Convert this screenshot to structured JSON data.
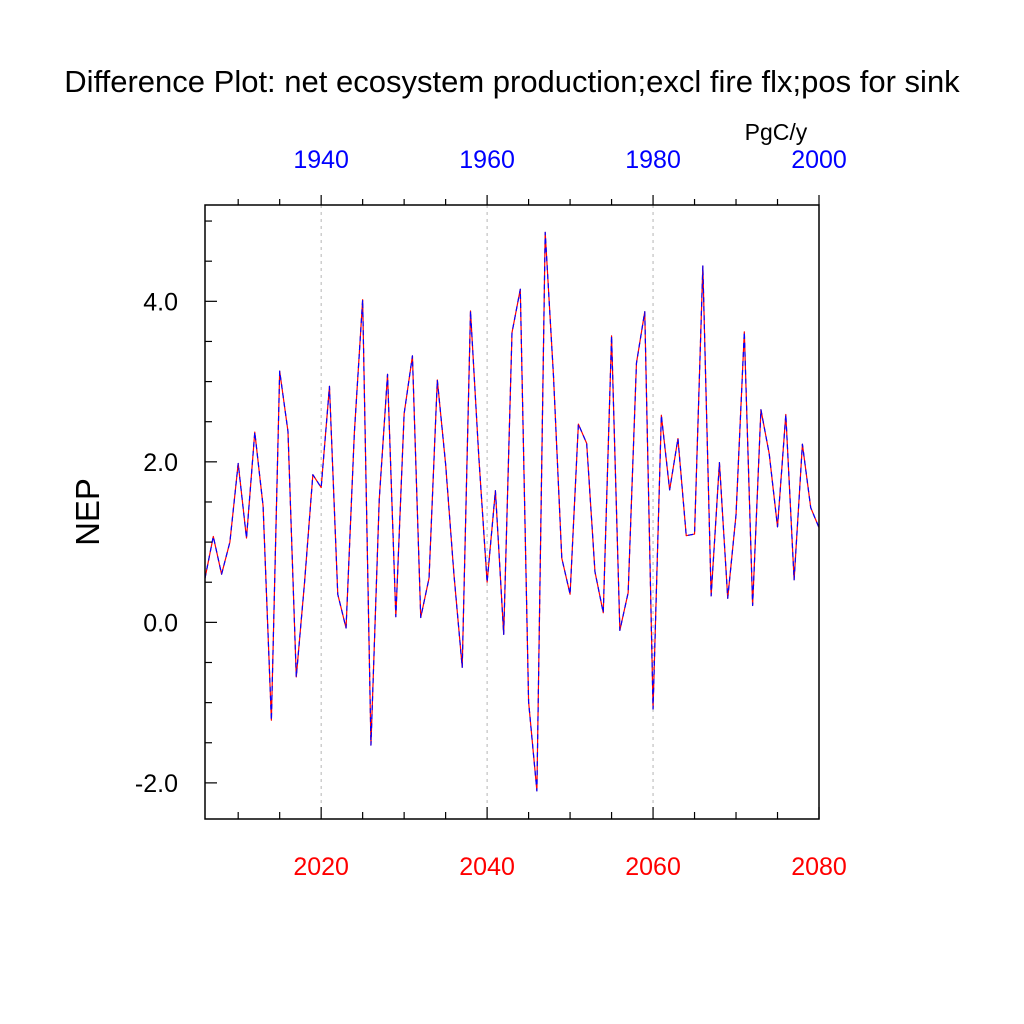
{
  "chart_data": {
    "type": "line",
    "title": "Difference Plot: net ecosystem production;excl fire flx;pos for sink",
    "ylabel": "NEP",
    "units": "PgC/y",
    "ylim": [
      -2.45,
      5.2
    ],
    "y_ticks": [
      -2.0,
      0.0,
      2.0,
      4.0
    ],
    "y_tick_labels": [
      "-2.0",
      "0.0",
      "2.0",
      "4.0"
    ],
    "bottom_axis": {
      "range": [
        2006,
        2080
      ],
      "ticks": [
        2020,
        2040,
        2060,
        2080
      ],
      "tick_labels": [
        "2020",
        "2040",
        "2060",
        "2080"
      ],
      "color": "#ff0000"
    },
    "top_axis": {
      "range": [
        1926,
        2000
      ],
      "ticks": [
        1940,
        1960,
        1980,
        2000
      ],
      "tick_labels": [
        "1940",
        "1960",
        "1980",
        "2000"
      ],
      "color": "#0000ff"
    },
    "grid": "vertical dashed at bottom-axis major ticks",
    "series": [
      {
        "color": "#ff0000",
        "style": "solid",
        "x": [
          2006,
          2007,
          2008,
          2009,
          2010,
          2011,
          2012,
          2013,
          2014,
          2015,
          2016,
          2017,
          2018,
          2019,
          2020,
          2021,
          2022,
          2023,
          2024,
          2025,
          2026,
          2027,
          2028,
          2029,
          2030,
          2031,
          2032,
          2033,
          2034,
          2035,
          2036,
          2037,
          2038,
          2039,
          2040,
          2041,
          2042,
          2043,
          2044,
          2045,
          2046,
          2047,
          2048,
          2049,
          2050,
          2051,
          2052,
          2053,
          2054,
          2055,
          2056,
          2057,
          2058,
          2059,
          2060,
          2061,
          2062,
          2063,
          2064,
          2065,
          2066,
          2067,
          2068,
          2069,
          2070,
          2071,
          2072,
          2073,
          2074,
          2075,
          2076,
          2077,
          2078,
          2079,
          2080
        ],
        "values": [
          0.55,
          1.07,
          0.6,
          1.0,
          1.98,
          1.05,
          2.37,
          1.45,
          -1.22,
          3.13,
          2.38,
          -0.68,
          0.5,
          1.84,
          1.68,
          2.94,
          0.35,
          -0.07,
          2.36,
          4.02,
          -1.53,
          1.53,
          3.09,
          0.07,
          2.6,
          3.32,
          0.06,
          0.55,
          3.02,
          1.97,
          0.6,
          -0.56,
          3.88,
          2.06,
          0.5,
          1.64,
          -0.15,
          3.61,
          4.15,
          -0.99,
          -2.1,
          4.86,
          3.07,
          0.8,
          0.35,
          2.47,
          2.23,
          0.63,
          0.12,
          3.57,
          -0.1,
          0.37,
          3.23,
          3.87,
          -1.08,
          2.58,
          1.65,
          2.29,
          1.08,
          1.1,
          4.44,
          0.33,
          1.99,
          0.3,
          1.34,
          3.62,
          0.21,
          2.65,
          2.1,
          1.19,
          2.59,
          0.53,
          2.22,
          1.43,
          1.18
        ]
      },
      {
        "color": "#0000ff",
        "style": "dashed",
        "x": [
          2006,
          2007,
          2008,
          2009,
          2010,
          2011,
          2012,
          2013,
          2014,
          2015,
          2016,
          2017,
          2018,
          2019,
          2020,
          2021,
          2022,
          2023,
          2024,
          2025,
          2026,
          2027,
          2028,
          2029,
          2030,
          2031,
          2032,
          2033,
          2034,
          2035,
          2036,
          2037,
          2038,
          2039,
          2040,
          2041,
          2042,
          2043,
          2044,
          2045,
          2046,
          2047,
          2048,
          2049,
          2050,
          2051,
          2052,
          2053,
          2054,
          2055,
          2056,
          2057,
          2058,
          2059,
          2060,
          2061,
          2062,
          2063,
          2064,
          2065,
          2066,
          2067,
          2068,
          2069,
          2070,
          2071,
          2072,
          2073,
          2074,
          2075,
          2076,
          2077,
          2078,
          2079,
          2080
        ],
        "values": [
          0.55,
          1.07,
          0.6,
          1.0,
          1.98,
          1.05,
          2.37,
          1.45,
          -1.22,
          3.13,
          2.38,
          -0.68,
          0.5,
          1.84,
          1.68,
          2.94,
          0.35,
          -0.07,
          2.36,
          4.02,
          -1.53,
          1.53,
          3.09,
          0.07,
          2.6,
          3.32,
          0.06,
          0.55,
          3.02,
          1.97,
          0.6,
          -0.56,
          3.88,
          2.06,
          0.5,
          1.64,
          -0.15,
          3.61,
          4.15,
          -0.99,
          -2.1,
          4.86,
          3.07,
          0.8,
          0.35,
          2.47,
          2.23,
          0.63,
          0.12,
          3.57,
          -0.1,
          0.37,
          3.23,
          3.87,
          -1.08,
          2.58,
          1.65,
          2.29,
          1.08,
          1.1,
          4.44,
          0.33,
          1.99,
          0.3,
          1.34,
          3.62,
          0.21,
          2.65,
          2.1,
          1.19,
          2.59,
          0.53,
          2.22,
          1.43,
          1.18
        ]
      }
    ]
  }
}
